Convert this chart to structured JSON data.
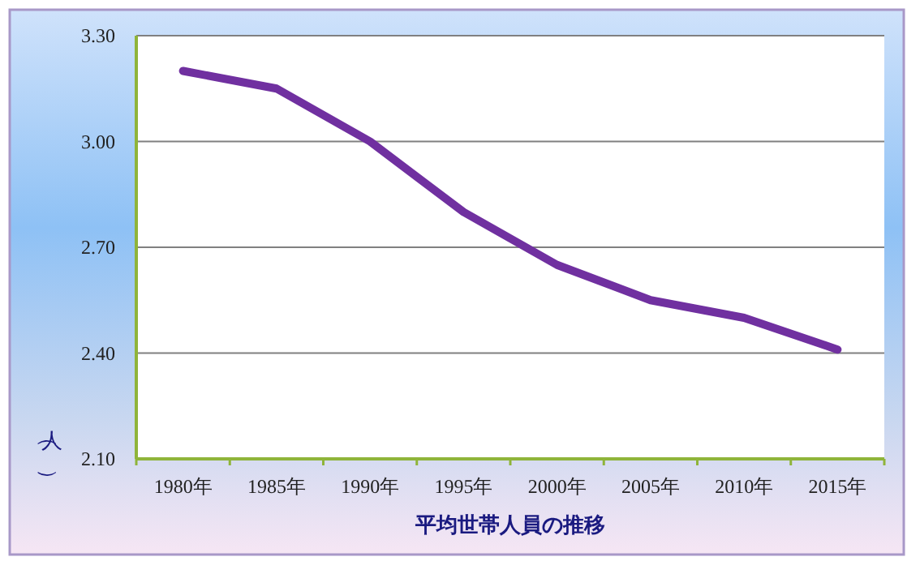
{
  "chart_data": {
    "type": "line",
    "xlabel": "平均世帯人員の推移",
    "ylabel": "（人）",
    "categories": [
      "1980年",
      "1985年",
      "1990年",
      "1995年",
      "2000年",
      "2005年",
      "2010年",
      "2015年"
    ],
    "series": [
      {
        "color": "#7030a0",
        "values": [
          3.2,
          3.15,
          3.0,
          2.8,
          2.65,
          2.55,
          2.5,
          2.41
        ]
      }
    ],
    "ylim": [
      2.1,
      3.3
    ],
    "yticks": [
      {
        "value": 2.1,
        "label": "2.10"
      },
      {
        "value": 2.4,
        "label": "2.40"
      },
      {
        "value": 2.7,
        "label": "2.70"
      },
      {
        "value": 3.0,
        "label": "3.00"
      },
      {
        "value": 3.3,
        "label": "3.30"
      }
    ],
    "grid": "y"
  }
}
